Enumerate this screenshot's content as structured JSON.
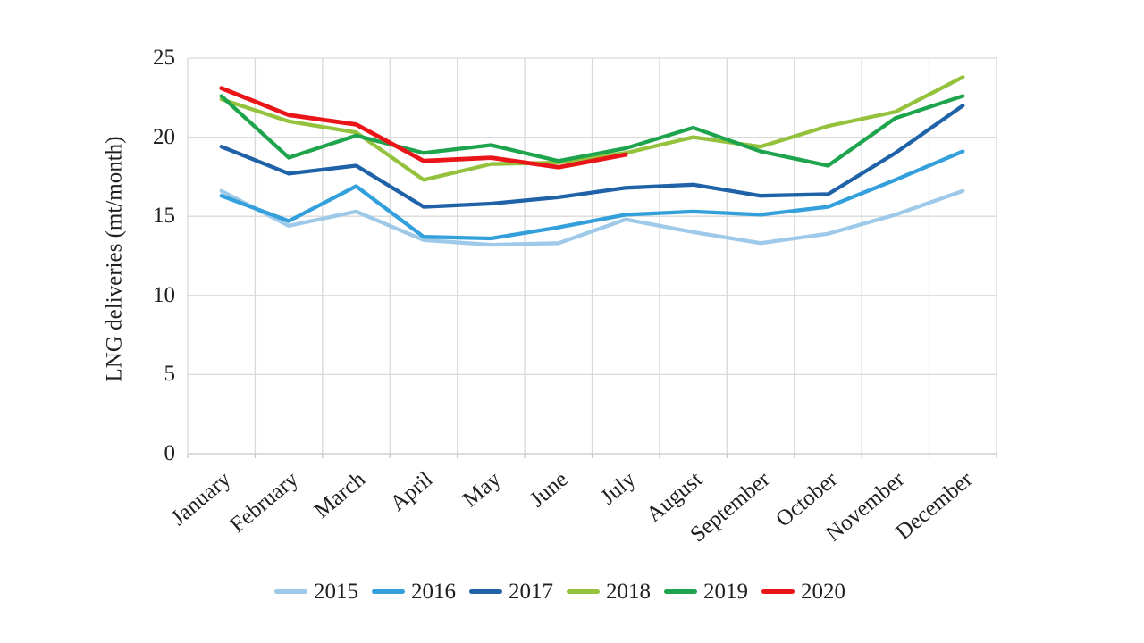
{
  "chart_data": {
    "type": "line",
    "title": "",
    "ylabel": "LNG deliveries (mt/month)",
    "xlabel": "",
    "categories": [
      "January",
      "February",
      "March",
      "April",
      "May",
      "June",
      "July",
      "August",
      "September",
      "October",
      "November",
      "December"
    ],
    "yticks": [
      0,
      5,
      10,
      15,
      20,
      25
    ],
    "ylim": [
      0,
      25
    ],
    "grid": true,
    "gridline_color": "#d9d9d9",
    "legend_position": "bottom",
    "series": [
      {
        "name": "2015",
        "color": "#9fc9e8",
        "values": [
          16.6,
          14.4,
          15.3,
          13.5,
          13.2,
          13.3,
          14.8,
          14.0,
          13.3,
          13.9,
          15.1,
          16.6
        ]
      },
      {
        "name": "2016",
        "color": "#33a0db",
        "values": [
          16.3,
          14.7,
          16.9,
          13.7,
          13.6,
          14.3,
          15.1,
          15.3,
          15.1,
          15.6,
          17.3,
          19.1
        ]
      },
      {
        "name": "2017",
        "color": "#1f62a8",
        "values": [
          19.4,
          17.7,
          18.2,
          15.6,
          15.8,
          16.2,
          16.8,
          17.0,
          16.3,
          16.4,
          19.0,
          22.0
        ]
      },
      {
        "name": "2018",
        "color": "#95c23d",
        "values": [
          22.4,
          21.0,
          20.3,
          17.3,
          18.3,
          18.4,
          19.0,
          20.0,
          19.4,
          20.7,
          21.6,
          23.8
        ]
      },
      {
        "name": "2019",
        "color": "#1ea44c",
        "values": [
          22.6,
          18.7,
          20.1,
          19.0,
          19.5,
          18.5,
          19.3,
          20.6,
          19.1,
          18.2,
          21.2,
          22.6
        ]
      },
      {
        "name": "2020",
        "color": "#ea1519",
        "values": [
          23.1,
          21.4,
          20.8,
          18.5,
          18.7,
          18.1,
          18.9
        ]
      }
    ]
  }
}
